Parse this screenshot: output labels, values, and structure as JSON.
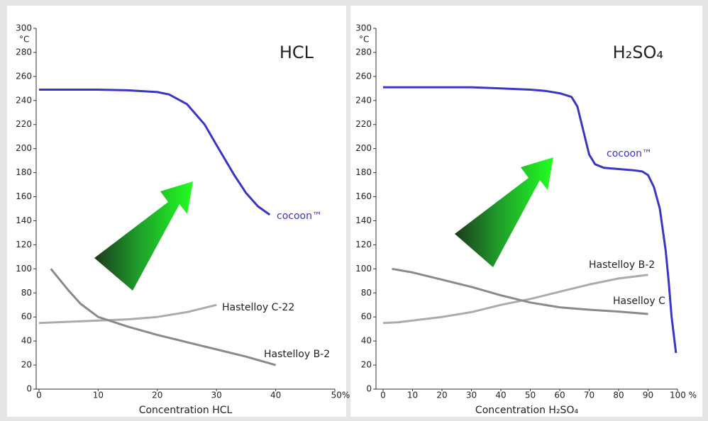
{
  "chart_data": [
    {
      "type": "line",
      "title": "HCL",
      "x_label": "Concentration HCL",
      "y_unit": "°C",
      "xlim": [
        0,
        50
      ],
      "ylim": [
        0,
        300
      ],
      "xticks": [
        0,
        10,
        20,
        30,
        40,
        {
          "value": 50,
          "label": "50%"
        }
      ],
      "yticks": [
        0,
        20,
        40,
        60,
        80,
        100,
        120,
        140,
        160,
        180,
        200,
        220,
        240,
        260,
        280,
        300
      ],
      "series": [
        {
          "name": "cocoon™",
          "color": "#3b35c4",
          "x": [
            0,
            5,
            10,
            15,
            20,
            22,
            25,
            28,
            30,
            33,
            35,
            37,
            39
          ],
          "values": [
            249,
            249,
            249,
            248.5,
            247,
            245,
            237,
            220,
            203,
            178,
            163,
            152,
            145
          ]
        },
        {
          "name": "Hastelloy  C-22",
          "color": "#ababab",
          "x": [
            0,
            5,
            10,
            15,
            20,
            25,
            30
          ],
          "values": [
            55,
            56,
            57,
            58,
            60,
            64,
            70
          ]
        },
        {
          "name": "Hastelloy B-2",
          "color": "#8a8a8a",
          "x": [
            2,
            5,
            7,
            10,
            15,
            20,
            25,
            30,
            35,
            40
          ],
          "values": [
            100,
            82,
            71,
            60,
            52,
            45,
            39,
            33,
            27,
            20
          ]
        }
      ]
    },
    {
      "type": "line",
      "title": "H₂SO₄",
      "x_label": "Concentration H₂SO₄",
      "y_unit": "°C",
      "xlim": [
        0,
        100
      ],
      "ylim": [
        0,
        300
      ],
      "xticks": [
        0,
        10,
        20,
        30,
        40,
        50,
        60,
        70,
        80,
        90,
        {
          "value": 100,
          "label": "100 %"
        }
      ],
      "yticks": [
        0,
        20,
        40,
        60,
        80,
        100,
        120,
        140,
        160,
        180,
        200,
        220,
        240,
        260,
        280,
        300
      ],
      "series": [
        {
          "name": "cocoon™",
          "color": "#3b35c4",
          "x": [
            0,
            10,
            20,
            30,
            40,
            50,
            55,
            60,
            64,
            66,
            68,
            70,
            72,
            75,
            80,
            85,
            88,
            90,
            92,
            94,
            96,
            97,
            98,
            99.5
          ],
          "values": [
            251,
            251,
            251,
            251,
            250,
            249,
            248,
            246,
            243,
            235,
            215,
            195,
            187,
            184,
            183,
            182,
            181,
            178,
            168,
            150,
            115,
            90,
            60,
            30
          ]
        },
        {
          "name": "Hastelloy B-2",
          "color": "#ababab",
          "x": [
            0,
            5,
            10,
            20,
            30,
            40,
            50,
            60,
            70,
            80,
            90
          ],
          "values": [
            55,
            55.5,
            57,
            60,
            64,
            70,
            75,
            81,
            87,
            92,
            95
          ]
        },
        {
          "name": "Haselloy C",
          "color": "#8a8a8a",
          "x": [
            3,
            10,
            20,
            30,
            40,
            50,
            60,
            70,
            80,
            90
          ],
          "values": [
            100,
            97,
            91,
            85,
            78,
            72,
            68,
            66,
            64.5,
            62.5
          ]
        }
      ]
    }
  ]
}
